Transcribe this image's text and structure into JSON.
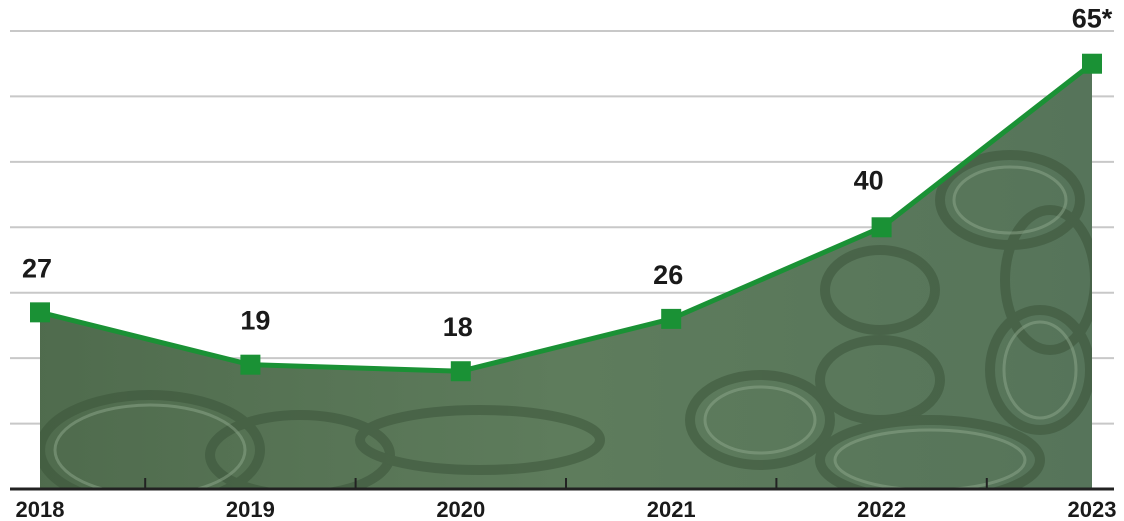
{
  "chart_data": {
    "type": "line",
    "title": "",
    "xlabel": "",
    "ylabel": "",
    "categories": [
      "2018",
      "2019",
      "2020",
      "2021",
      "2022",
      "2023"
    ],
    "series": [
      {
        "values": [
          27,
          19,
          18,
          26,
          40,
          65
        ],
        "data_labels": [
          "27",
          "19",
          "18",
          "26",
          "40",
          "65*"
        ],
        "color": "#1a9135"
      }
    ],
    "ylim": [
      0,
      70
    ],
    "y_gridlines": [
      10,
      20,
      30,
      40,
      50,
      60,
      70
    ],
    "show_y_tick_labels": false,
    "grid": true,
    "legend": "none",
    "marker": "square",
    "background": "photo of stacked tires tinted green",
    "colors": {
      "line": "#1a9135",
      "grid": "#c8c8c8",
      "axis": "#222222",
      "photo_tint": "#5d7a5b"
    }
  }
}
